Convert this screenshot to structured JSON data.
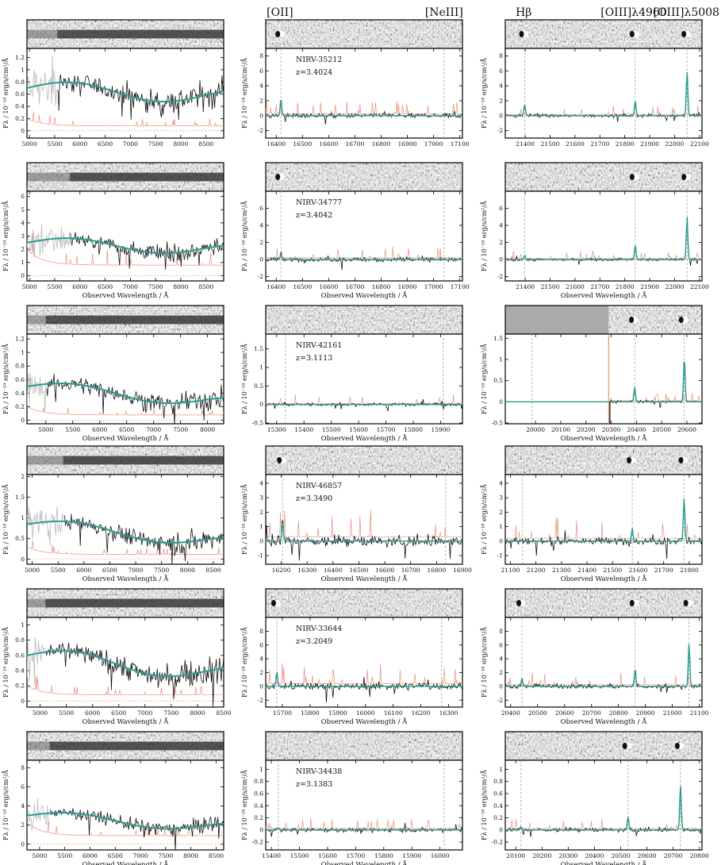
{
  "header_labels": [
    {
      "text": "[OII]",
      "col": 1,
      "wave": 16414
    },
    {
      "text": "[NeIII]",
      "col": 1,
      "wave": 17040
    },
    {
      "text": "Hβ",
      "col": 2,
      "wave": 21394
    },
    {
      "text": "[OIII]λ4960",
      "col": 2,
      "wave": 21836
    },
    {
      "text": "[OIII]λ5008",
      "col": 2,
      "wave": 22047
    }
  ],
  "ylabel_blue": "Fλ / 10⁻¹⁹ erg/s/cm²/Å",
  "ylabel_red": "Fλ / 10⁻¹⁸ erg/s/cm²/Å",
  "xlabel": "Observed Wavelength / Å",
  "colors": {
    "data": "#111111",
    "model": "#2a9d8f",
    "error": "#e8907a",
    "masked": "#bbbbbb",
    "line": "#888888"
  },
  "chart_data": [
    {
      "type": "line",
      "object": "NIRV-35212",
      "z": "z=3.4024",
      "blue": {
        "xlim": [
          4950,
          8850
        ],
        "ylim": [
          -0.12,
          1.35
        ],
        "xticks": [
          5000,
          5500,
          6000,
          6500,
          7000,
          7500,
          8000,
          8500
        ],
        "yticks": [
          0.0,
          0.2,
          0.4,
          0.6,
          0.8,
          1.0,
          1.2
        ],
        "level": 0.7,
        "slope": -0.2,
        "mask_end": 5550,
        "err": 0.08,
        "xlabel": false
      },
      "red1": {
        "xlim": [
          16360,
          17110
        ],
        "ylim": [
          -3,
          9
        ],
        "xticks": [
          16400,
          16500,
          16600,
          16700,
          16800,
          16900,
          17000,
          17100
        ],
        "yticks": [
          -2,
          0,
          2,
          4,
          6,
          8
        ],
        "lines": [
          16418,
          17040
        ],
        "peaks": [
          [
            16418,
            2.2
          ]
        ],
        "noise": 0.3,
        "xlabel": false
      },
      "red2": {
        "xlim": [
          21320,
          22110
        ],
        "ylim": [
          -3,
          9
        ],
        "xticks": [
          21400,
          21500,
          21600,
          21700,
          21800,
          21900,
          22000,
          22100
        ],
        "yticks": [
          -2,
          0,
          2,
          4,
          6,
          8
        ],
        "lines": [
          21398,
          21842,
          22050
        ],
        "peaks": [
          [
            21398,
            1.5
          ],
          [
            21842,
            2.0
          ],
          [
            22050,
            6.0
          ]
        ],
        "noise": 0.2,
        "xlabel": false
      }
    },
    {
      "type": "line",
      "object": "NIRV-34777",
      "z": "z=3.4042",
      "blue": {
        "xlim": [
          4950,
          8850
        ],
        "ylim": [
          -0.4,
          6.4
        ],
        "xticks": [
          5000,
          5500,
          6000,
          6500,
          7000,
          7500,
          8000,
          8500
        ],
        "yticks": [
          0,
          1,
          2,
          3,
          4,
          5,
          6
        ],
        "level": 2.5,
        "slope": -0.2,
        "mask_end": 5800,
        "err": 0.8,
        "xlabel": true
      },
      "red1": {
        "xlim": [
          16360,
          17110
        ],
        "ylim": [
          -2.5,
          8
        ],
        "xticks": [
          16400,
          16500,
          16600,
          16700,
          16800,
          16900,
          17000,
          17100
        ],
        "yticks": [
          -2,
          0,
          2,
          4,
          6
        ],
        "lines": [
          16418,
          17040
        ],
        "peaks": [
          [
            16418,
            0.7
          ]
        ],
        "noise": 0.25,
        "xlabel": true
      },
      "red2": {
        "xlim": [
          21320,
          22110
        ],
        "ylim": [
          -2.5,
          8
        ],
        "xticks": [
          21400,
          21500,
          21600,
          21700,
          21800,
          21900,
          22000,
          22100
        ],
        "yticks": [
          -2,
          0,
          2,
          4,
          6
        ],
        "lines": [
          21398,
          21842,
          22050
        ],
        "peaks": [
          [
            21398,
            0.5
          ],
          [
            21842,
            1.7
          ],
          [
            22050,
            5.0
          ]
        ],
        "noise": 0.15,
        "xlabel": true
      }
    },
    {
      "type": "line",
      "object": "NIRV-42161",
      "z": "z=3.1113",
      "blue": {
        "xlim": [
          4650,
          8300
        ],
        "ylim": [
          -0.05,
          1.27
        ],
        "xticks": [
          5000,
          5500,
          6000,
          6500,
          7000,
          7500,
          8000
        ],
        "yticks": [
          0.0,
          0.2,
          0.4,
          0.6,
          0.8,
          1.0,
          1.2
        ],
        "level": 0.5,
        "slope": -0.45,
        "mask_end": 5000,
        "err": 0.08,
        "xlabel": true
      },
      "red1": {
        "xlim": [
          15260,
          15980
        ],
        "ylim": [
          -0.52,
          1.9
        ],
        "xticks": [
          15300,
          15400,
          15500,
          15600,
          15700,
          15800,
          15900
        ],
        "yticks": [
          -0.5,
          0.0,
          0.5,
          1.0,
          1.5
        ],
        "lines": [
          15332,
          15910
        ],
        "peaks": [],
        "noise": 0.04,
        "xlabel": true
      },
      "red2": {
        "xlim": [
          19880,
          20660
        ],
        "ylim": [
          -0.52,
          1.6
        ],
        "xticks": [
          20000,
          20100,
          20200,
          20300,
          20400,
          20500,
          20600
        ],
        "yticks": [
          -0.5,
          0.0,
          0.5,
          1.0,
          1.5
        ],
        "lines": [
          19985,
          20393,
          20590
        ],
        "peaks": [
          [
            20393,
            0.35
          ],
          [
            20590,
            1.05
          ]
        ],
        "noise": 0.03,
        "gap_end": 20290,
        "xlabel": true
      }
    },
    {
      "type": "line",
      "object": "NIRV-46857",
      "z": "z=3.3490",
      "blue": {
        "xlim": [
          4900,
          8700
        ],
        "ylim": [
          -0.12,
          2.05
        ],
        "xticks": [
          5000,
          5500,
          6000,
          6500,
          7000,
          7500,
          8000,
          8500
        ],
        "yticks": [
          0.0,
          0.5,
          1.0,
          1.5,
          2.0
        ],
        "level": 0.85,
        "slope": -0.5,
        "mask_end": 5600,
        "err": 0.12,
        "xlabel": true
      },
      "red1": {
        "xlim": [
          16140,
          16900
        ],
        "ylim": [
          -1.6,
          4.6
        ],
        "xticks": [
          16200,
          16300,
          16400,
          16500,
          16600,
          16700,
          16800,
          16900
        ],
        "yticks": [
          -1,
          0,
          1,
          2,
          3,
          4
        ],
        "lines": [
          16205,
          16835
        ],
        "peaks": [
          [
            16205,
            1.4
          ]
        ],
        "noise": 0.35,
        "xlabel": true
      },
      "red2": {
        "xlim": [
          21080,
          21850
        ],
        "ylim": [
          -1.6,
          4.6
        ],
        "xticks": [
          21100,
          21200,
          21300,
          21400,
          21500,
          21600,
          21700,
          21800
        ],
        "yticks": [
          -1,
          0,
          1,
          2,
          3,
          4
        ],
        "lines": [
          21148,
          21577,
          21780
        ],
        "peaks": [
          [
            21577,
            0.9
          ],
          [
            21780,
            3.0
          ]
        ],
        "noise": 0.25,
        "xlabel": true
      }
    },
    {
      "type": "line",
      "object": "NIRV-33644",
      "z": "z=3.2049",
      "blue": {
        "xlim": [
          4750,
          8500
        ],
        "ylim": [
          -0.08,
          1.1
        ],
        "xticks": [
          5000,
          5500,
          6000,
          6500,
          7000,
          7500,
          8000,
          8500
        ],
        "yticks": [
          0.0,
          0.2,
          0.4,
          0.6,
          0.8,
          1.0
        ],
        "level": 0.6,
        "slope": -0.4,
        "mask_end": 5100,
        "err": 0.08,
        "xlabel": true
      },
      "red1": {
        "xlim": [
          15640,
          16350
        ],
        "ylim": [
          -3,
          10
        ],
        "xticks": [
          15600,
          15700,
          15800,
          15900,
          16000,
          16100,
          16200,
          16300
        ],
        "yticks": [
          -2,
          0,
          2,
          4,
          6,
          8
        ],
        "lines": [
          15680,
          16275
        ],
        "peaks": [
          [
            15680,
            2.0
          ]
        ],
        "noise": 0.5,
        "xlabel": true
      },
      "red2": {
        "xlim": [
          20380,
          21110
        ],
        "ylim": [
          -3,
          10
        ],
        "xticks": [
          20400,
          20500,
          20600,
          20700,
          20800,
          20900,
          21000,
          21100
        ],
        "yticks": [
          -2,
          0,
          2,
          4,
          6,
          8
        ],
        "lines": [
          20442,
          20862,
          21062
        ],
        "peaks": [
          [
            20442,
            1.2
          ],
          [
            20862,
            2.5
          ],
          [
            21062,
            6.3
          ]
        ],
        "noise": 0.3,
        "xlabel": true
      }
    },
    {
      "type": "line",
      "object": "NIRV-34438",
      "z": "z=3.1383",
      "blue": {
        "xlim": [
          4750,
          8650
        ],
        "ylim": [
          -0.6,
          8.8
        ],
        "xticks": [
          5000,
          5500,
          6000,
          6500,
          7000,
          7500,
          8000,
          8500
        ],
        "yticks": [
          0,
          2,
          4,
          6,
          8
        ],
        "level": 3.0,
        "slope": -0.4,
        "mask_end": 5200,
        "err": 0.9,
        "xlabel": true
      },
      "red1": {
        "xlim": [
          15380,
          16080
        ],
        "ylim": [
          -0.33,
          1.15
        ],
        "xticks": [
          15400,
          15500,
          15600,
          15700,
          15800,
          15900,
          16000
        ],
        "yticks": [
          -0.2,
          0.0,
          0.2,
          0.4,
          0.6,
          0.8,
          1.0
        ],
        "lines": [
          15425,
          16015
        ],
        "peaks": [
          [
            15425,
            0.04
          ]
        ],
        "noise": 0.03,
        "xlabel": true
      },
      "red2": {
        "xlim": [
          20060,
          20810
        ],
        "ylim": [
          -0.33,
          1.15
        ],
        "xticks": [
          20100,
          20200,
          20300,
          20400,
          20500,
          20600,
          20700,
          20800
        ],
        "yticks": [
          -0.2,
          0.0,
          0.2,
          0.4,
          0.6,
          0.8,
          1.0
        ],
        "lines": [
          20120,
          20528,
          20728
        ],
        "peaks": [
          [
            20120,
            0.05
          ],
          [
            20528,
            0.22
          ],
          [
            20728,
            0.75
          ]
        ],
        "noise": 0.03,
        "xlabel": true
      }
    }
  ]
}
